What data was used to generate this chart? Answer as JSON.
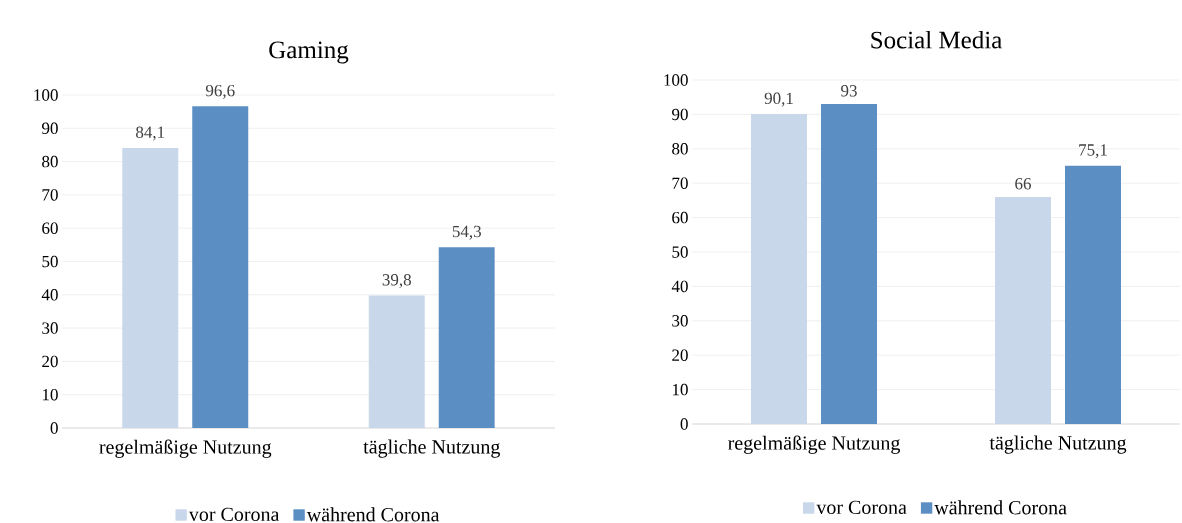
{
  "chart_data": [
    {
      "type": "bar",
      "title": "Gaming",
      "categories": [
        "regelmäßige Nutzung",
        "tägliche Nutzung"
      ],
      "series": [
        {
          "name": "vor Corona",
          "color": "#c9d7ea",
          "values": [
            84.1,
            39.8
          ],
          "value_labels": [
            "84,1",
            "39,8"
          ]
        },
        {
          "name": "während Corona",
          "color": "#5b8ec3",
          "values": [
            96.6,
            54.3
          ],
          "value_labels": [
            "96,6",
            "54,3"
          ]
        }
      ],
      "ylim": [
        0,
        100
      ],
      "yticks": [
        0,
        10,
        20,
        30,
        40,
        50,
        60,
        70,
        80,
        90,
        100
      ],
      "grid": "y",
      "legend": "bottom"
    },
    {
      "type": "bar",
      "title": "Social Media",
      "categories": [
        "regelmäßige Nutzung",
        "tägliche Nutzung"
      ],
      "series": [
        {
          "name": "vor Corona",
          "color": "#c9d7ea",
          "values": [
            90.1,
            66
          ],
          "value_labels": [
            "90,1",
            "66"
          ]
        },
        {
          "name": "während Corona",
          "color": "#5b8ec3",
          "values": [
            93,
            75.1
          ],
          "value_labels": [
            "93",
            "75,1"
          ]
        }
      ],
      "ylim": [
        0,
        100
      ],
      "yticks": [
        0,
        10,
        20,
        30,
        40,
        50,
        60,
        70,
        80,
        90,
        100
      ],
      "grid": "y",
      "legend": "bottom"
    }
  ]
}
